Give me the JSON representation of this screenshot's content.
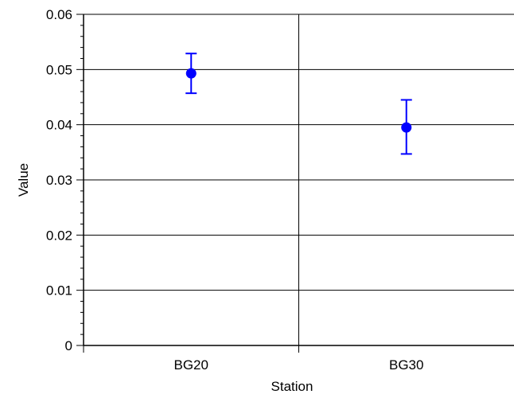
{
  "chart_data": {
    "type": "scatter",
    "title": "",
    "xlabel": "Station",
    "ylabel": "Value",
    "categories": [
      "BG20",
      "BG30"
    ],
    "series": [
      {
        "points": [
          {
            "category": "BG20",
            "value": 0.0493,
            "error_low": 0.0457,
            "error_high": 0.0529
          },
          {
            "category": "BG30",
            "value": 0.0395,
            "error_low": 0.0347,
            "error_high": 0.0445
          }
        ]
      }
    ],
    "ylim": [
      0,
      0.06
    ],
    "yticks": [
      "0",
      "0.01",
      "0.02",
      "0.03",
      "0.04",
      "0.05",
      "0.06"
    ],
    "grid": true,
    "legend": "none",
    "marker_color": "#0000ff"
  }
}
